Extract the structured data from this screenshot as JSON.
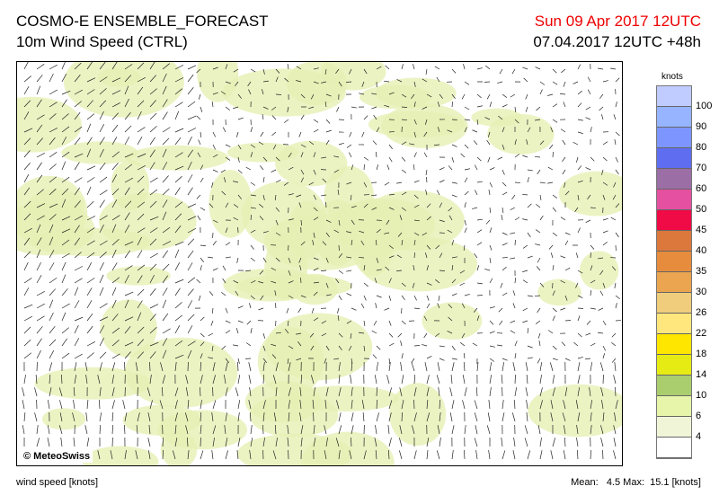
{
  "header": {
    "title": "COSMO-E ENSEMBLE_FORECAST",
    "subtitle": "10m Wind Speed (CTRL)",
    "valid_time": "Sun 09 Apr 2017 12UTC",
    "init_time": "07.04.2017 12UTC +48h"
  },
  "map": {
    "copyright": "© MeteoSwiss"
  },
  "legend": {
    "unit": "knots",
    "labels": [
      "100",
      "90",
      "80",
      "70",
      "60",
      "50",
      "45",
      "40",
      "35",
      "30",
      "26",
      "22",
      "18",
      "14",
      "10",
      "6",
      "4"
    ],
    "colors": [
      "#c0ccff",
      "#96b4ff",
      "#7d96ff",
      "#5f6ef0",
      "#9b6ea5",
      "#e650a0",
      "#f00a46",
      "#dc783c",
      "#e68c3c",
      "#eba550",
      "#f0cd7d",
      "#ffe67d",
      "#ffe600",
      "#e6eb14",
      "#aacd6e",
      "#e6f5aa",
      "#f0f5d7",
      "#ffffff"
    ]
  },
  "footer": {
    "left": "wind speed [knots]",
    "stats": "Mean:   4.5 Max:  15.1 [knots]"
  }
}
